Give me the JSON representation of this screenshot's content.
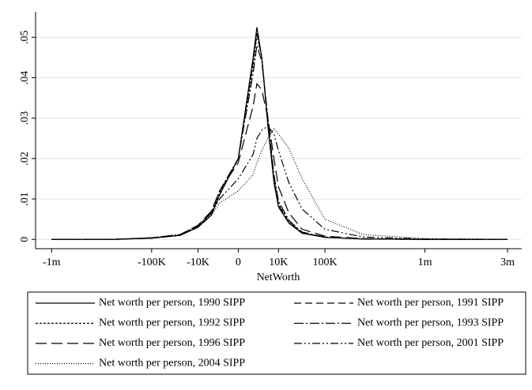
{
  "chart_data": {
    "type": "line",
    "x_label": "NetWorth",
    "xscale": "cuberoot",
    "x": [
      -1000000,
      -300000,
      -100000,
      -30000,
      -10000,
      -3000,
      -1000,
      0,
      500,
      1000,
      2000,
      4000,
      7000,
      10000,
      20000,
      40000,
      100000,
      300000,
      1000000,
      3000000
    ],
    "series": [
      {
        "name": "Net worth per person, 1990 SIPP",
        "color": "#000",
        "dash": "",
        "values": [
          0,
          0,
          0.0003,
          0.001,
          0.003,
          0.006,
          0.011,
          0.02,
          0.045,
          0.0525,
          0.045,
          0.028,
          0.014,
          0.008,
          0.004,
          0.0015,
          0.0005,
          0.0001,
          0,
          0
        ]
      },
      {
        "name": "Net worth per person, 1991 SIPP",
        "color": "#000",
        "dash": "9,5",
        "values": [
          0,
          0,
          0.0003,
          0.001,
          0.003,
          0.006,
          0.011,
          0.02,
          0.044,
          0.051,
          0.045,
          0.029,
          0.015,
          0.0085,
          0.0042,
          0.0016,
          0.0005,
          0.0001,
          0,
          0
        ]
      },
      {
        "name": "Net worth per person, 1992 SIPP",
        "color": "#000",
        "dash": "3,2",
        "values": [
          0,
          0,
          0.0003,
          0.001,
          0.0032,
          0.0065,
          0.0115,
          0.02,
          0.043,
          0.0505,
          0.045,
          0.029,
          0.015,
          0.0088,
          0.0044,
          0.0017,
          0.0005,
          0.0001,
          0,
          0
        ]
      },
      {
        "name": "Net worth per person, 1993 SIPP",
        "color": "#000",
        "dash": "12,3,2,3",
        "values": [
          0,
          0,
          0.0003,
          0.001,
          0.0033,
          0.0068,
          0.012,
          0.02,
          0.041,
          0.048,
          0.044,
          0.03,
          0.016,
          0.0095,
          0.0047,
          0.0018,
          0.0006,
          0.0001,
          0,
          0
        ]
      },
      {
        "name": "Net worth per person, 1996 SIPP",
        "color": "#000",
        "dash": "14,6",
        "values": [
          0,
          0,
          0.0004,
          0.0012,
          0.0035,
          0.007,
          0.012,
          0.019,
          0.033,
          0.0385,
          0.037,
          0.03,
          0.02,
          0.013,
          0.0065,
          0.0025,
          0.0008,
          0.0002,
          0,
          0
        ]
      },
      {
        "name": "Net worth per person, 2001 SIPP",
        "color": "#000",
        "dash": "10,3,2,3,2,3",
        "values": [
          0,
          0,
          0.0004,
          0.0012,
          0.0035,
          0.0065,
          0.01,
          0.015,
          0.021,
          0.025,
          0.027,
          0.028,
          0.026,
          0.022,
          0.014,
          0.0075,
          0.0025,
          0.0006,
          0.0001,
          0
        ]
      },
      {
        "name": "Net worth per person, 2004 SIPP",
        "color": "#000",
        "dash": "1,2",
        "values": [
          0,
          0,
          0.0004,
          0.0012,
          0.0033,
          0.006,
          0.009,
          0.012,
          0.016,
          0.019,
          0.022,
          0.025,
          0.0275,
          0.026,
          0.0225,
          0.015,
          0.005,
          0.0012,
          0.0002,
          0
        ]
      }
    ],
    "xlim": [
      -1280000,
      3500000
    ],
    "xticks": [
      {
        "value": -1000000,
        "label": "-1m"
      },
      {
        "value": -100000,
        "label": "-100K"
      },
      {
        "value": -10000,
        "label": "-10K"
      },
      0,
      {
        "value": 10000,
        "label": "10K"
      },
      {
        "value": 100000,
        "label": "100K"
      },
      {
        "value": 1000000,
        "label": "1m"
      },
      {
        "value": 3000000,
        "label": "3m"
      }
    ],
    "ylim": [
      -0.0023,
      0.0563
    ],
    "yticks": [
      0,
      {
        "value": 0.01,
        "label": ".01"
      },
      {
        "value": 0.02,
        "label": ".02"
      },
      {
        "value": 0.03,
        "label": ".03"
      },
      {
        "value": 0.04,
        "label": ".04"
      },
      {
        "value": 0.05,
        "label": ".05"
      }
    ],
    "grid": true,
    "legend": "bottom"
  }
}
